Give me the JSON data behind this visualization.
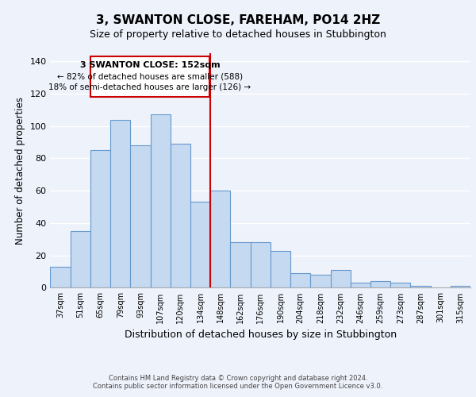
{
  "title": "3, SWANTON CLOSE, FAREHAM, PO14 2HZ",
  "subtitle": "Size of property relative to detached houses in Stubbington",
  "xlabel": "Distribution of detached houses by size in Stubbington",
  "ylabel": "Number of detached properties",
  "bar_labels": [
    "37sqm",
    "51sqm",
    "65sqm",
    "79sqm",
    "93sqm",
    "107sqm",
    "120sqm",
    "134sqm",
    "148sqm",
    "162sqm",
    "176sqm",
    "190sqm",
    "204sqm",
    "218sqm",
    "232sqm",
    "246sqm",
    "259sqm",
    "273sqm",
    "287sqm",
    "301sqm",
    "315sqm"
  ],
  "bar_values": [
    13,
    35,
    85,
    104,
    88,
    107,
    89,
    53,
    60,
    28,
    28,
    23,
    9,
    8,
    11,
    3,
    4,
    3,
    1,
    0,
    1
  ],
  "bar_color": "#c5d9f1",
  "bar_edge_color": "#6699cc",
  "ylim": [
    0,
    145
  ],
  "yticks": [
    0,
    20,
    40,
    60,
    80,
    100,
    120,
    140
  ],
  "vline_color": "#cc0000",
  "annotation_title": "3 SWANTON CLOSE: 152sqm",
  "annotation_line1": "← 82% of detached houses are smaller (588)",
  "annotation_line2": "18% of semi-detached houses are larger (126) →",
  "annotation_box_edge": "#cc0000",
  "footer1": "Contains HM Land Registry data © Crown copyright and database right 2024.",
  "footer2": "Contains public sector information licensed under the Open Government Licence v3.0.",
  "background_color": "#eef2fb",
  "grid_color": "#ffffff",
  "title_fontsize": 11,
  "subtitle_fontsize": 9
}
